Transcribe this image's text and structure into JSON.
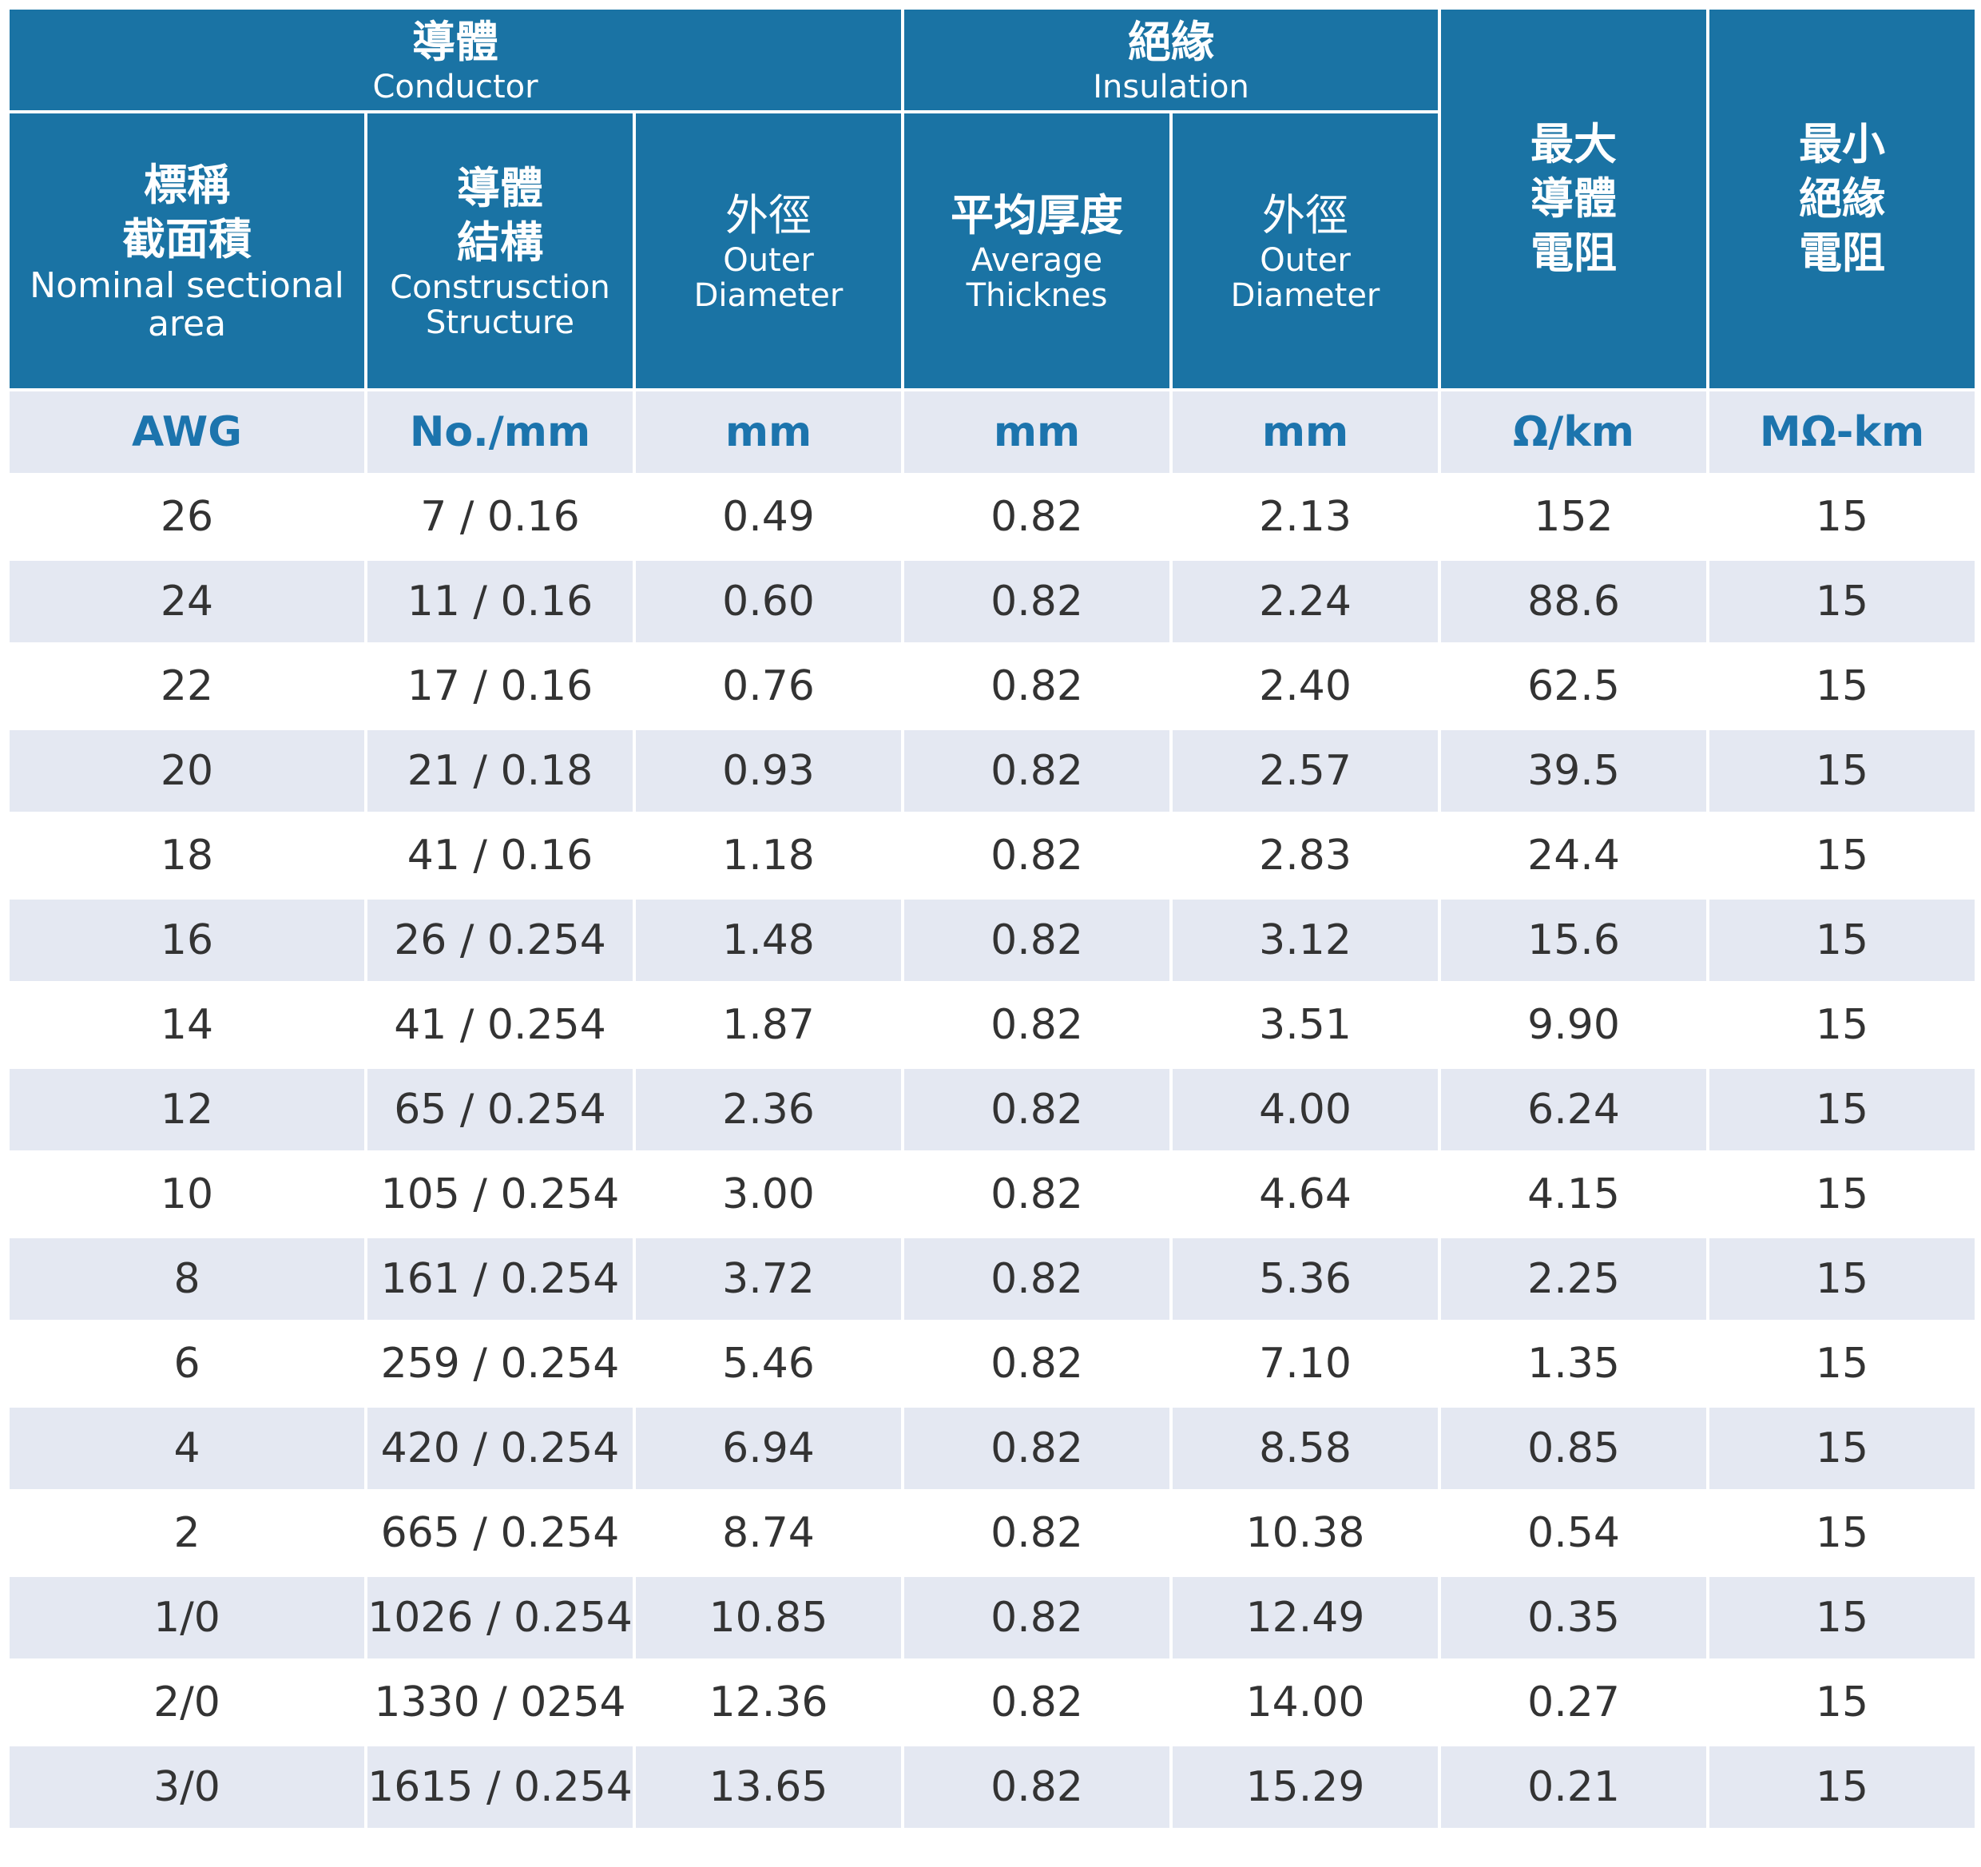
{
  "header": {
    "conductor": {
      "zh": "導體",
      "en": "Conductor"
    },
    "insulation": {
      "zh": "絕緣",
      "en": "Insulation"
    },
    "nominal_area": {
      "zh1": "標稱",
      "zh2": "截面積",
      "en1": "Nominal sectional",
      "en2": "area"
    },
    "construction": {
      "zh1": "導體",
      "zh2": "結構",
      "en1": "Construsction",
      "en2": "Structure"
    },
    "conductor_od": {
      "zh": "外徑",
      "en1": "Outer",
      "en2": "Diameter"
    },
    "avg_thickness": {
      "zh": "平均厚度",
      "en1": "Average",
      "en2": "Thicknes"
    },
    "insulation_od": {
      "zh": "外徑",
      "en1": "Outer",
      "en2": "Diameter"
    },
    "max_resistance": {
      "zh1": "最大",
      "zh2": "導體",
      "zh3": "電阻"
    },
    "min_insulation_resistance": {
      "zh1": "最小",
      "zh2": "絕緣",
      "zh3": "電阻"
    }
  },
  "units": [
    "AWG",
    "No./mm",
    "mm",
    "mm",
    "mm",
    "Ω/km",
    "MΩ-km"
  ],
  "rows": [
    [
      "26",
      "7 / 0.16",
      "0.49",
      "0.82",
      "2.13",
      "152",
      "15"
    ],
    [
      "24",
      "11 / 0.16",
      "0.60",
      "0.82",
      "2.24",
      "88.6",
      "15"
    ],
    [
      "22",
      "17 / 0.16",
      "0.76",
      "0.82",
      "2.40",
      "62.5",
      "15"
    ],
    [
      "20",
      "21 / 0.18",
      "0.93",
      "0.82",
      "2.57",
      "39.5",
      "15"
    ],
    [
      "18",
      "41 / 0.16",
      "1.18",
      "0.82",
      "2.83",
      "24.4",
      "15"
    ],
    [
      "16",
      "26 / 0.254",
      "1.48",
      "0.82",
      "3.12",
      "15.6",
      "15"
    ],
    [
      "14",
      "41 / 0.254",
      "1.87",
      "0.82",
      "3.51",
      "9.90",
      "15"
    ],
    [
      "12",
      "65 / 0.254",
      "2.36",
      "0.82",
      "4.00",
      "6.24",
      "15"
    ],
    [
      "10",
      "105 / 0.254",
      "3.00",
      "0.82",
      "4.64",
      "4.15",
      "15"
    ],
    [
      "8",
      "161 / 0.254",
      "3.72",
      "0.82",
      "5.36",
      "2.25",
      "15"
    ],
    [
      "6",
      "259 / 0.254",
      "5.46",
      "0.82",
      "7.10",
      "1.35",
      "15"
    ],
    [
      "4",
      "420 / 0.254",
      "6.94",
      "0.82",
      "8.58",
      "0.85",
      "15"
    ],
    [
      "2",
      "665 / 0.254",
      "8.74",
      "0.82",
      "10.38",
      "0.54",
      "15"
    ],
    [
      "1/0",
      "1026 / 0.254",
      "10.85",
      "0.82",
      "12.49",
      "0.35",
      "15"
    ],
    [
      "2/0",
      "1330 / 0254",
      "12.36",
      "0.82",
      "14.00",
      "0.27",
      "15"
    ],
    [
      "3/0",
      "1615 / 0.254",
      "13.65",
      "0.82",
      "15.29",
      "0.21",
      "15"
    ]
  ]
}
